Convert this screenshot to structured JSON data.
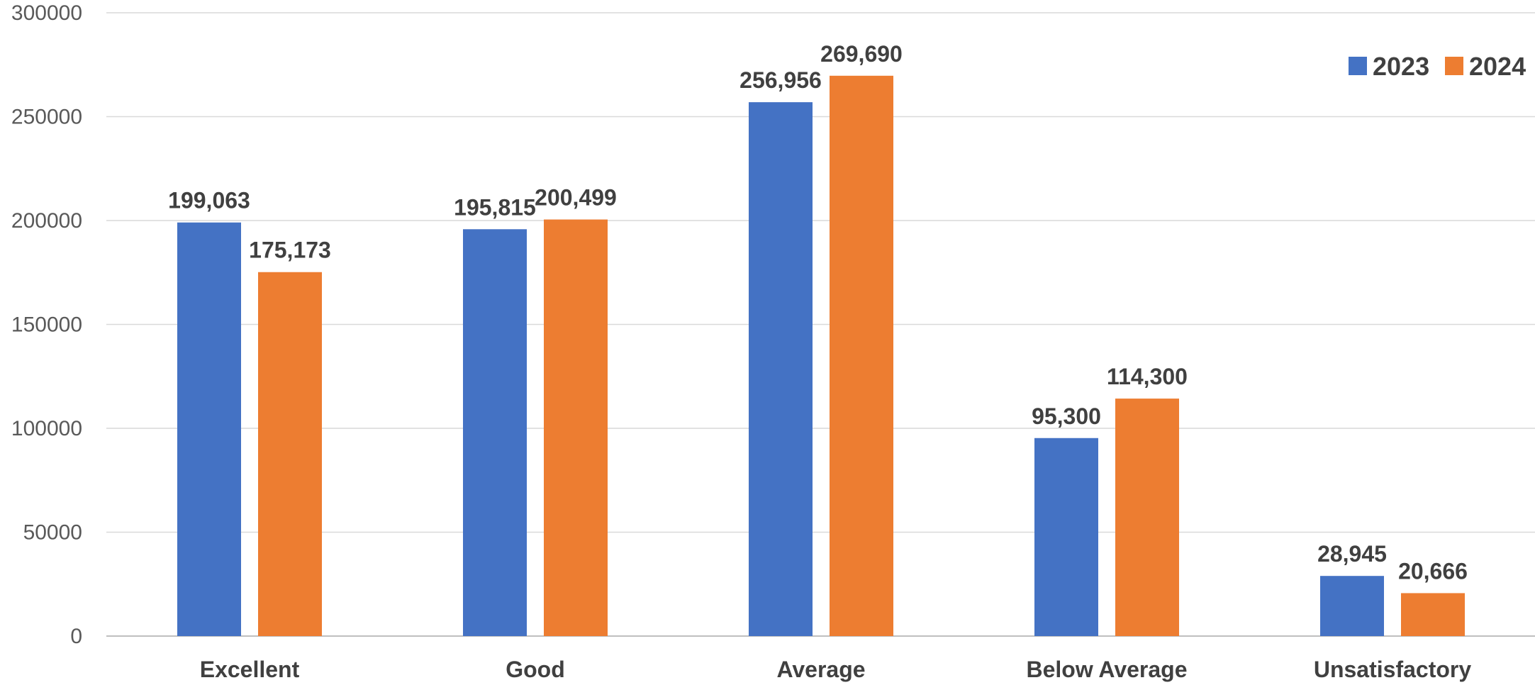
{
  "chart_data": {
    "type": "bar",
    "title": "",
    "xlabel": "",
    "ylabel": "",
    "categories": [
      "Excellent",
      "Good",
      "Average",
      "Below Average",
      "Unsatisfactory"
    ],
    "series": [
      {
        "name": "2023",
        "color": "#4472C4",
        "values": [
          199063,
          195815,
          256956,
          95300,
          28945
        ],
        "labels": [
          "199,063",
          "195,815",
          "256,956",
          "95,300",
          "28,945"
        ]
      },
      {
        "name": "2024",
        "color": "#ED7D31",
        "values": [
          175173,
          200499,
          269690,
          114300,
          20666
        ],
        "labels": [
          "175,173",
          "200,499",
          "269,690",
          "114,300",
          "20,666"
        ]
      }
    ],
    "ylim": [
      0,
      300000
    ],
    "yticks": [
      0,
      50000,
      100000,
      150000,
      200000,
      250000,
      300000
    ],
    "ytick_labels": [
      "0",
      "50000",
      "100000",
      "150000",
      "200000",
      "250000",
      "300000"
    ],
    "grid": true,
    "legend": "top-right",
    "data_labels": true
  }
}
